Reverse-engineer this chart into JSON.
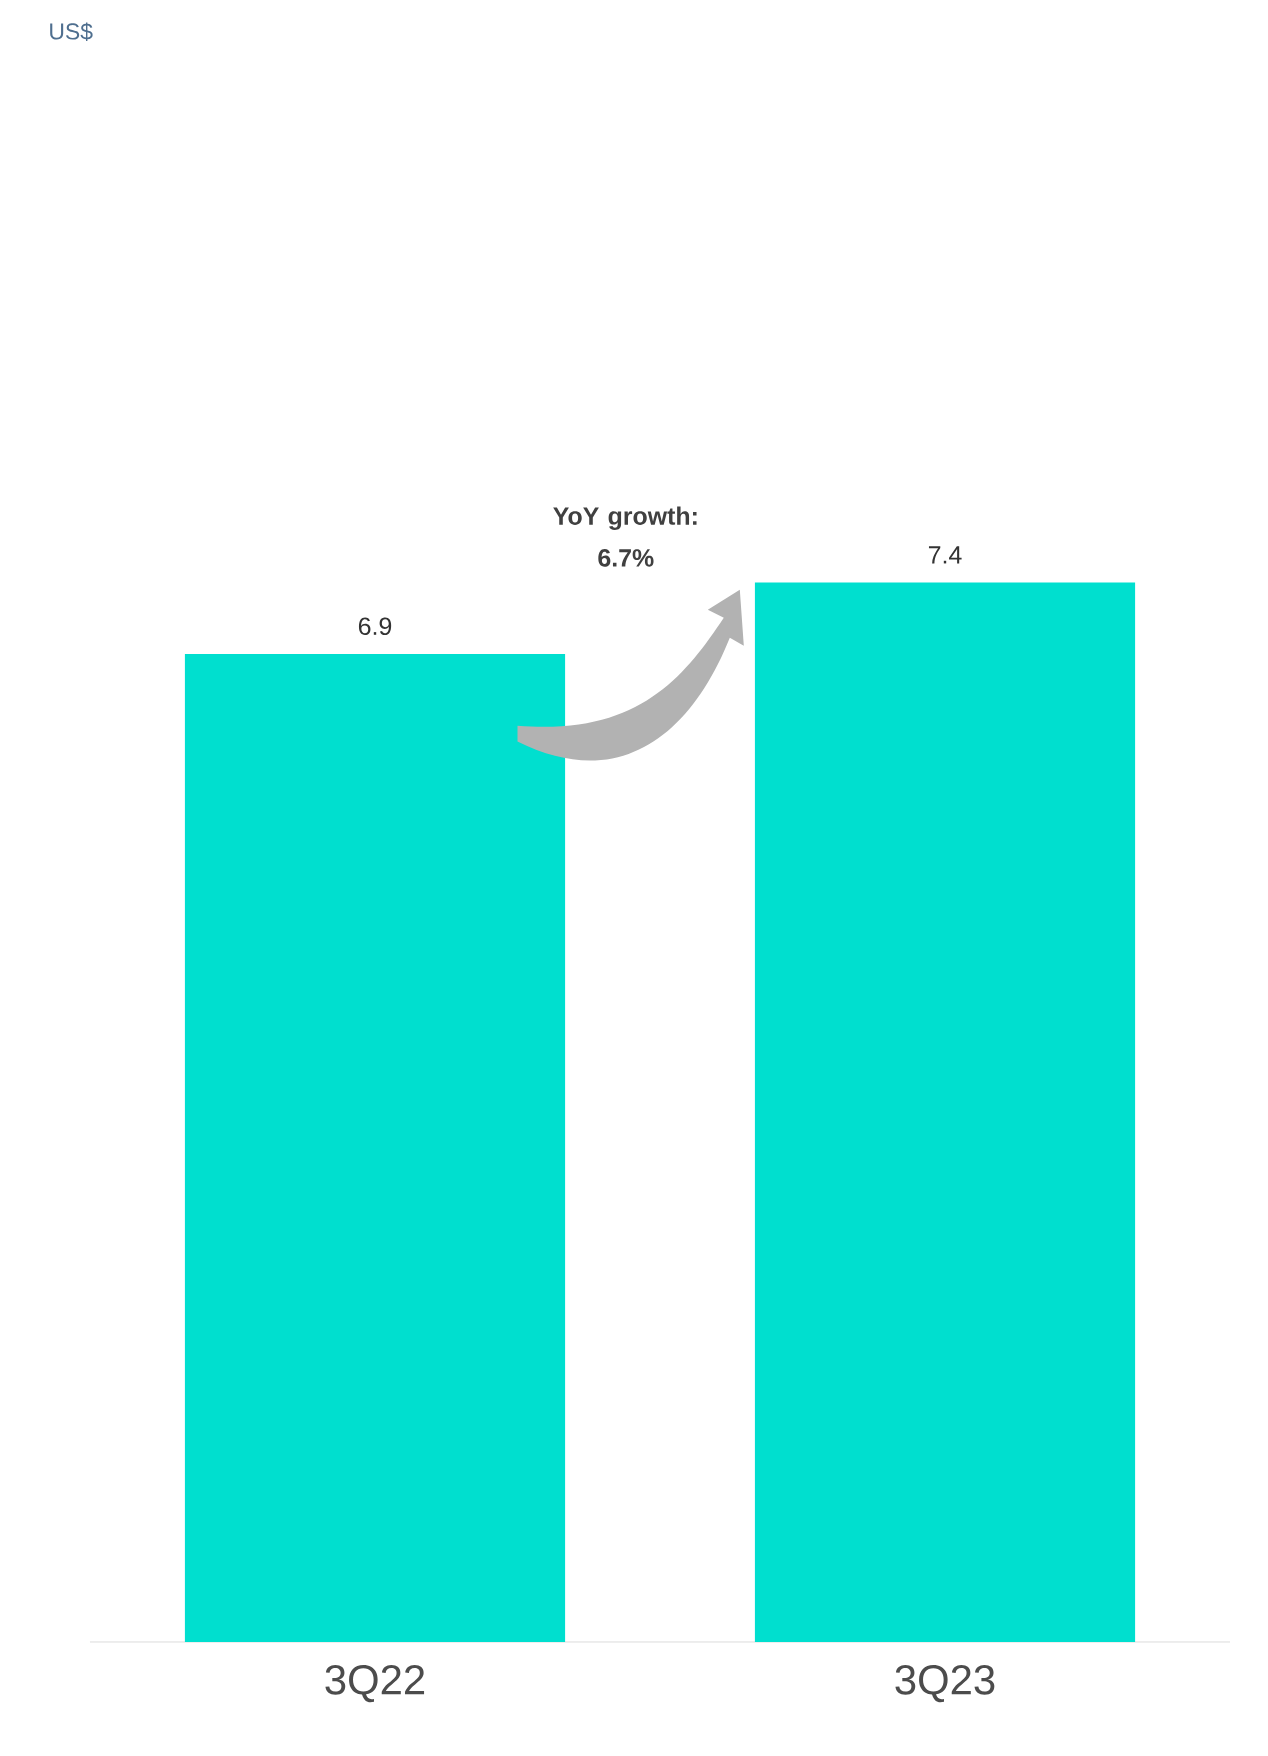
{
  "chart_data": {
    "type": "bar",
    "title": "US$",
    "categories": [
      "3Q22",
      "3Q23"
    ],
    "values": [
      6.9,
      7.4
    ],
    "color": "#00dfcf",
    "data_labels": true,
    "annotations": [
      "YoY growth: 6.7%"
    ]
  }
}
